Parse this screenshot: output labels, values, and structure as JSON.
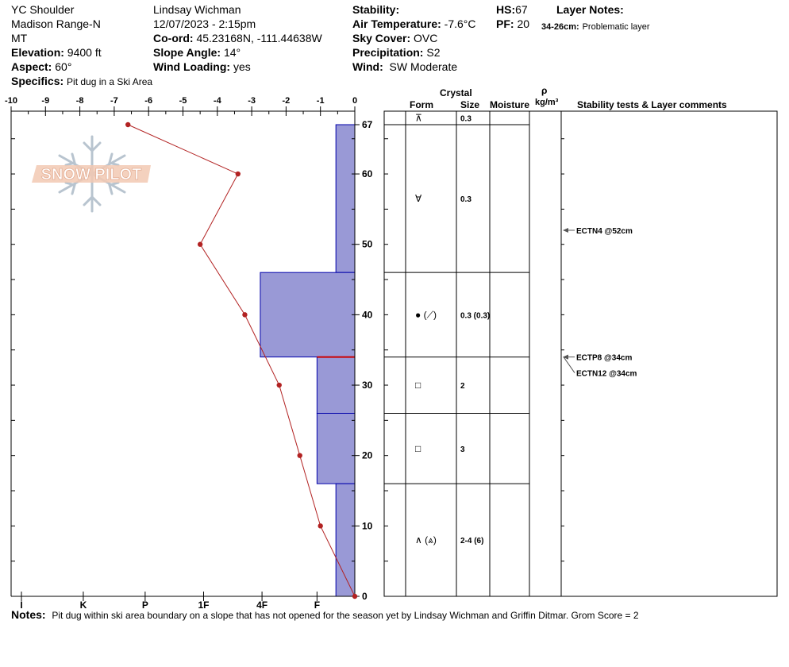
{
  "header": {
    "location": "YC Shoulder",
    "range": "Madison Range-N",
    "state": "MT",
    "elevation_label": "Elevation:",
    "elevation": "9400 ft",
    "aspect_label": "Aspect:",
    "aspect": "60°",
    "specifics_label": "Specifics:",
    "specifics": "Pit dug in a Ski Area",
    "observer": "Lindsay Wichman",
    "datetime": "12/07/2023 - 2:15pm",
    "coord_label": "Co-ord:",
    "coord": "45.23168N, -111.44638W",
    "slope_label": "Slope Angle:",
    "slope": "14°",
    "wind_loading_label": "Wind Loading:",
    "wind_loading": "yes",
    "stability_label": "Stability:",
    "stability": "",
    "air_temp_label": "Air Temperature:",
    "air_temp": "-7.6°C",
    "sky_label": "Sky Cover:",
    "sky": "OVC",
    "precip_label": "Precipitation:",
    "precip": "S2",
    "wind_label": "Wind:",
    "wind": "SW Moderate",
    "hs_label": "HS:",
    "hs": "67",
    "pf_label": "PF:",
    "pf": "20",
    "layer_notes_label": "Layer Notes:",
    "layer_note_range": "34-26cm:",
    "layer_note_text": "Problematic layer"
  },
  "table_headers": {
    "crystal": "Crystal",
    "form": "Form",
    "size": "Size",
    "moisture": "Moisture",
    "rho": "ρ",
    "density_unit": "kg/m³",
    "stability": "Stability tests & Layer comments"
  },
  "logo_text": "SNOW PILOT",
  "notes_label": "Notes:",
  "notes": "Pit dug within ski area boundary on a slope that has not opened for the season yet by Lindsay Wichman and Griffin Ditmar. Grom Score = 2",
  "chart_data": {
    "type": "snow-profile",
    "temperature_axis": {
      "ticks": [
        "-10",
        "-9",
        "-8",
        "-7",
        "-6",
        "-5",
        "-4",
        "-3",
        "-2",
        "-1",
        "0"
      ],
      "range": [
        -10,
        0
      ]
    },
    "hardness_axis": {
      "ticks": [
        "I",
        "K",
        "P",
        "1F",
        "4F",
        "F"
      ]
    },
    "depth_axis": {
      "range": [
        0,
        67
      ],
      "ticks": [
        "0",
        "10",
        "20",
        "30",
        "40",
        "50",
        "60",
        "67"
      ]
    },
    "temperature_profile": [
      {
        "depth": 67,
        "temp": -6.6
      },
      {
        "depth": 60,
        "temp": -3.4
      },
      {
        "depth": 50,
        "temp": -4.5
      },
      {
        "depth": 40,
        "temp": -3.2
      },
      {
        "depth": 30,
        "temp": -2.2
      },
      {
        "depth": 20,
        "temp": -1.6
      },
      {
        "depth": 10,
        "temp": -1.0
      },
      {
        "depth": 0,
        "temp": 0.0
      }
    ],
    "hardness_layers": [
      {
        "top": 67,
        "bottom": 46,
        "temp_extent": -0.55
      },
      {
        "top": 46,
        "bottom": 34,
        "temp_extent": -2.75
      },
      {
        "top": 34,
        "bottom": 26,
        "temp_extent": -1.1
      },
      {
        "top": 26,
        "bottom": 16,
        "temp_extent": -1.1
      },
      {
        "top": 16,
        "bottom": 0,
        "temp_extent": -0.55
      }
    ],
    "weak_interface_depth": 34,
    "layers": [
      {
        "top": 67,
        "bottom": 67,
        "form": "⊼",
        "size": "0.3"
      },
      {
        "top": 67,
        "bottom": 46,
        "form": "∀",
        "size": "0.3"
      },
      {
        "top": 46,
        "bottom": 34,
        "form": "●  (⟋)",
        "size": "0.3 (0.3)"
      },
      {
        "top": 34,
        "bottom": 26,
        "form": "□",
        "size": "2"
      },
      {
        "top": 26,
        "bottom": 16,
        "form": "□",
        "size": "3"
      },
      {
        "top": 16,
        "bottom": 0,
        "form": "∧ (⩓)",
        "size": "2-4 (6)"
      }
    ],
    "tests": [
      {
        "depth": 52,
        "label": "ECTN4 @52cm"
      },
      {
        "depth": 34,
        "label": "ECTP8 @34cm"
      },
      {
        "depth": 34,
        "label": "ECTN12 @34cm"
      }
    ]
  }
}
